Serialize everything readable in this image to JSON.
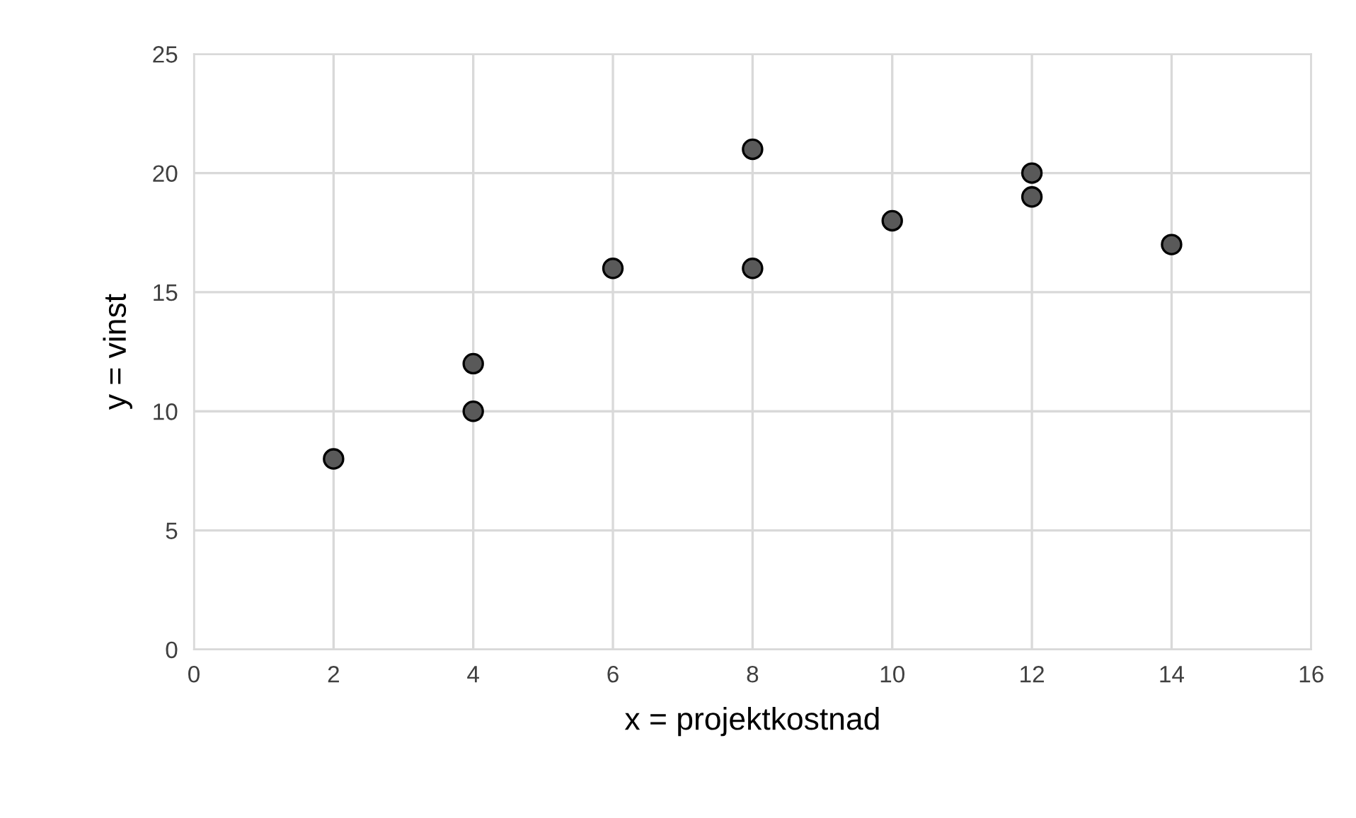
{
  "chart_data": {
    "type": "scatter",
    "xlabel": "x = projektkostnad",
    "ylabel": "y = vinst",
    "x": [
      2,
      4,
      4,
      6,
      8,
      8,
      10,
      12,
      12,
      14
    ],
    "values": [
      8,
      12,
      10,
      16,
      21,
      16,
      18,
      20,
      19,
      17
    ],
    "color": "#595959",
    "marker": "circle",
    "xlim": [
      0,
      16
    ],
    "xticks": [
      0,
      2,
      4,
      6,
      8,
      10,
      12,
      14,
      16
    ],
    "ylim": [
      0,
      25
    ],
    "yticks": [
      0,
      5,
      10,
      15,
      20,
      25
    ],
    "grid": true
  }
}
